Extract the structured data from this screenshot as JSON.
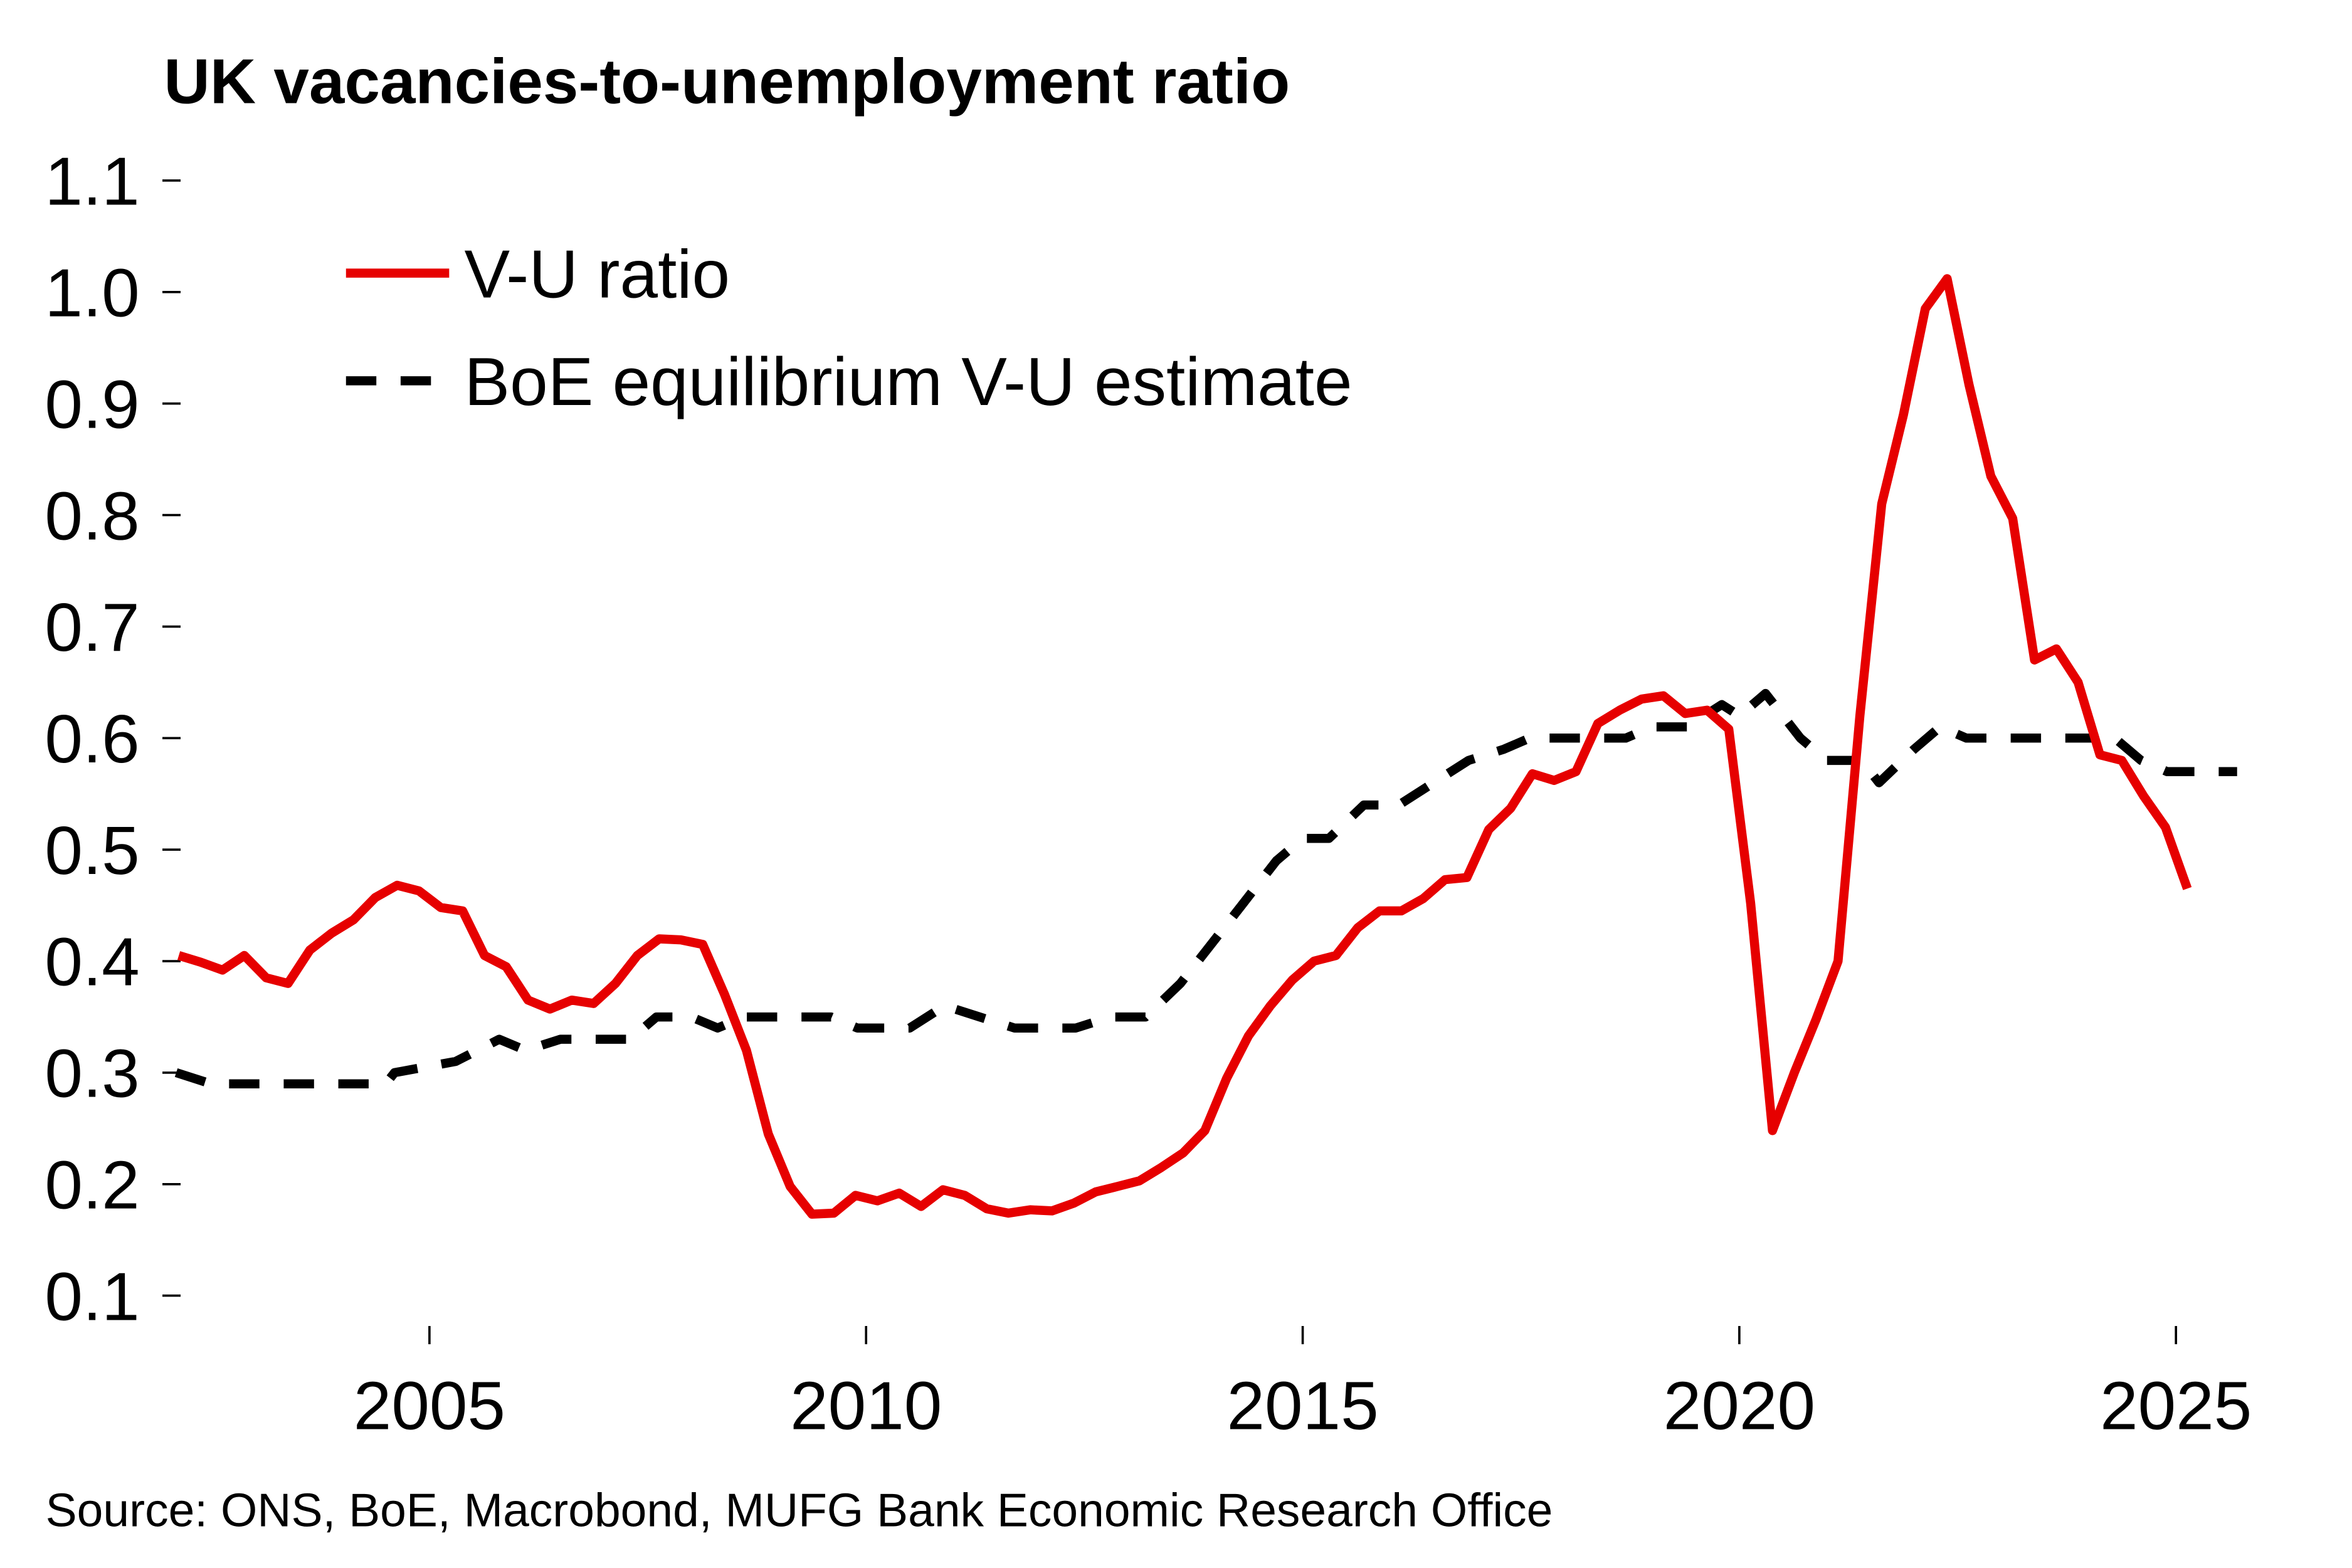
{
  "chart_data": {
    "type": "line",
    "title": "UK vacancies-to-unemployment ratio",
    "xlabel": "",
    "ylabel": "",
    "xlim": [
      2002.1,
      2025.7
    ],
    "ylim": [
      0.1,
      1.1
    ],
    "grid": false,
    "legend_position": "top-left",
    "y_ticks": [
      "0.1",
      "0.2",
      "0.3",
      "0.4",
      "0.5",
      "0.6",
      "0.7",
      "0.8",
      "0.9",
      "1.0",
      "1.1"
    ],
    "x_ticks": [
      "2005",
      "2010",
      "2015",
      "2020",
      "2025"
    ],
    "series": [
      {
        "name": "V-U ratio",
        "color": "#e60000",
        "style": "solid",
        "x": [
          2002.13,
          2002.38,
          2002.63,
          2002.88,
          2003.13,
          2003.38,
          2003.63,
          2003.88,
          2004.13,
          2004.38,
          2004.63,
          2004.88,
          2005.13,
          2005.38,
          2005.63,
          2005.88,
          2006.13,
          2006.38,
          2006.63,
          2006.88,
          2007.13,
          2007.38,
          2007.63,
          2007.88,
          2008.13,
          2008.38,
          2008.63,
          2008.88,
          2009.13,
          2009.38,
          2009.63,
          2009.88,
          2010.13,
          2010.38,
          2010.63,
          2010.88,
          2011.13,
          2011.38,
          2011.63,
          2011.88,
          2012.13,
          2012.38,
          2012.63,
          2012.88,
          2013.13,
          2013.38,
          2013.63,
          2013.88,
          2014.13,
          2014.38,
          2014.63,
          2014.88,
          2015.13,
          2015.38,
          2015.63,
          2015.88,
          2016.13,
          2016.38,
          2016.63,
          2016.88,
          2017.13,
          2017.38,
          2017.63,
          2017.88,
          2018.13,
          2018.38,
          2018.63,
          2018.88,
          2019.13,
          2019.38,
          2019.63,
          2019.88,
          2020.13,
          2020.38,
          2020.63,
          2020.88,
          2021.13,
          2021.38,
          2021.63,
          2021.88,
          2022.13,
          2022.38,
          2022.63,
          2022.88,
          2023.13,
          2023.38,
          2023.63,
          2023.88,
          2024.13,
          2024.38,
          2024.63,
          2024.88,
          2025.13
        ],
        "y": [
          0.405,
          0.399,
          0.392,
          0.405,
          0.385,
          0.38,
          0.41,
          0.425,
          0.437,
          0.457,
          0.468,
          0.463,
          0.448,
          0.445,
          0.405,
          0.395,
          0.365,
          0.357,
          0.365,
          0.362,
          0.38,
          0.405,
          0.42,
          0.419,
          0.415,
          0.37,
          0.32,
          0.245,
          0.198,
          0.173,
          0.174,
          0.19,
          0.185,
          0.192,
          0.18,
          0.195,
          0.19,
          0.178,
          0.174,
          0.177,
          0.176,
          0.183,
          0.193,
          0.198,
          0.203,
          0.215,
          0.228,
          0.248,
          0.295,
          0.333,
          0.36,
          0.383,
          0.4,
          0.405,
          0.43,
          0.445,
          0.445,
          0.456,
          0.473,
          0.475,
          0.518,
          0.537,
          0.568,
          0.562,
          0.57,
          0.613,
          0.625,
          0.635,
          0.638,
          0.622,
          0.625,
          0.608,
          0.452,
          0.248,
          0.3,
          0.348,
          0.4,
          0.62,
          0.81,
          0.89,
          0.985,
          1.012,
          0.917,
          0.835,
          0.797,
          0.67,
          0.68,
          0.65,
          0.585,
          0.58,
          0.548,
          0.52,
          0.465
        ]
      },
      {
        "name": "BoE equilibrium V-U estimate",
        "color": "#000000",
        "style": "dashed",
        "x": [
          2002.1,
          2002.5,
          2004.5,
          2004.6,
          2005.3,
          2005.8,
          2006.1,
          2006.5,
          2007.3,
          2007.6,
          2008.0,
          2008.3,
          2008.6,
          2009.6,
          2009.9,
          2010.5,
          2010.9,
          2011.3,
          2011.7,
          2012.4,
          2012.8,
          2013.2,
          2013.6,
          2013.9,
          2014.3,
          2014.7,
          2015.0,
          2015.3,
          2015.7,
          2016.1,
          2016.5,
          2016.9,
          2017.3,
          2017.6,
          2018.7,
          2019.0,
          2019.4,
          2019.8,
          2020.0,
          2020.3,
          2020.7,
          2021.0,
          2021.4,
          2021.6,
          2022.0,
          2022.3,
          2022.6,
          2024.3,
          2024.6,
          2024.9,
          2025.7
        ],
        "y": [
          0.3,
          0.29,
          0.29,
          0.3,
          0.31,
          0.33,
          0.32,
          0.33,
          0.33,
          0.35,
          0.35,
          0.34,
          0.35,
          0.35,
          0.34,
          0.34,
          0.36,
          0.35,
          0.34,
          0.34,
          0.35,
          0.35,
          0.38,
          0.41,
          0.45,
          0.49,
          0.51,
          0.51,
          0.54,
          0.54,
          0.56,
          0.58,
          0.59,
          0.6,
          0.6,
          0.61,
          0.61,
          0.63,
          0.62,
          0.64,
          0.6,
          0.58,
          0.58,
          0.56,
          0.59,
          0.61,
          0.6,
          0.6,
          0.58,
          0.57,
          0.57
        ]
      }
    ],
    "source": "Source: ONS, BoE, Macrobond, MUFG Bank Economic Research Office"
  }
}
